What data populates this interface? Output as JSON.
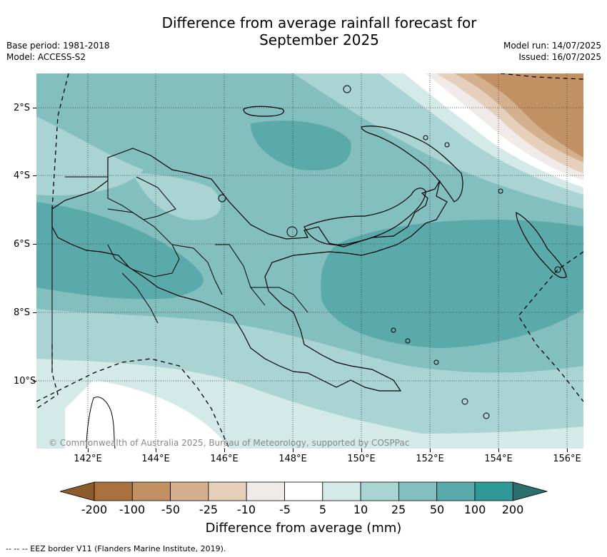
{
  "title_line1": "Difference from average rainfall forecast for",
  "title_line2": "September 2025",
  "meta": {
    "base_period": "Base period: 1981-2018",
    "model": "Model: ACCESS-S2",
    "model_run": "Model run: 14/07/2025",
    "issued": "Issued: 16/07/2025"
  },
  "map": {
    "region": "Papua New Guinea",
    "lon_range": [
      140.5,
      156.5
    ],
    "lat_range": [
      -12,
      -1
    ],
    "lat_ticks": [
      "2°S",
      "4°S",
      "6°S",
      "8°S",
      "10°S"
    ],
    "lon_ticks": [
      "142°E",
      "144°E",
      "146°E",
      "148°E",
      "150°E",
      "152°E",
      "154°E",
      "156°E"
    ],
    "copyright": "© Commonwealth of Australia 2025, Bureau of Meteorology, supported by COSPPac"
  },
  "colorbar": {
    "title": "Difference from average (mm)",
    "labels": [
      "-200",
      "-100",
      "-50",
      "-25",
      "-10",
      "-5",
      "5",
      "10",
      "25",
      "50",
      "100",
      "200"
    ],
    "colors": {
      "under": "#8c5a2b",
      "c1": "#a8703d",
      "c2": "#c29163",
      "c3": "#d4b08f",
      "c4": "#e6cfbb",
      "c5": "#f0ebe8",
      "c6": "#ffffff",
      "c7": "#d3eae9",
      "c8": "#aad4d3",
      "c9": "#84bfbf",
      "c10": "#5aaaab",
      "c11": "#309896",
      "over": "#2b6e6c"
    }
  },
  "footnote": "--  --  -- EEZ border V11 (Flanders Marine Institute, 2019)."
}
